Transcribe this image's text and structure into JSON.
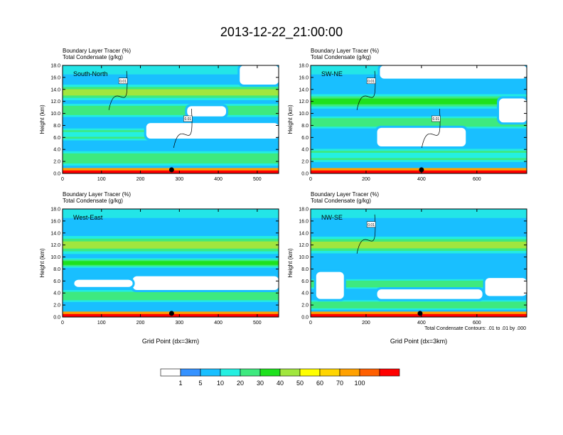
{
  "main_title": "2013-12-22_21:00:00",
  "footnote": "Total Condensate Contours: .01 to .01 by .000",
  "chart_data": [
    {
      "type": "heatmap",
      "panel": "South-North",
      "label": "South-North",
      "line1": "Boundary Layer Tracer   (%)",
      "line2": "Total Condensate   (g/kg)",
      "ylabel": "Height (km)",
      "xlabel": "",
      "xlim": [
        0,
        555
      ],
      "ylim": [
        0,
        18
      ],
      "xticks": [
        0,
        100,
        200,
        300,
        400,
        500
      ],
      "yticks": [
        "0.0",
        "2.0",
        "4.0",
        "6.0",
        "8.0",
        "10.0",
        "12.0",
        "14.0",
        "16.0",
        "18.0"
      ],
      "marker_x": 280,
      "contour_labels": [
        "0.01",
        "0.01"
      ],
      "bands": [
        {
          "center": 13.5,
          "width": 2.6,
          "level": 40
        },
        {
          "center": 10.5,
          "width": 2.2,
          "level": 20
        },
        {
          "center": 6.5,
          "width": 2.0,
          "level": 10
        },
        {
          "center": 2.5,
          "width": 2.4,
          "level": 20
        }
      ],
      "clear_regions": [
        {
          "x0": 215,
          "x1": 555,
          "y0": 5.8,
          "y1": 8.4
        },
        {
          "x0": 455,
          "x1": 555,
          "y0": 14.8,
          "y1": 18.0
        },
        {
          "x0": 320,
          "x1": 420,
          "y0": 9.5,
          "y1": 11.2
        }
      ]
    },
    {
      "type": "heatmap",
      "panel": "SW-NE",
      "label": "SW-NE",
      "line1": "Boundary Layer Tracer   (%)",
      "line2": "Total Condensate   (g/kg)",
      "ylabel": "Height (km)",
      "xlabel": "",
      "xlim": [
        0,
        780
      ],
      "ylim": [
        0,
        18
      ],
      "xticks": [
        0,
        200,
        400,
        600
      ],
      "yticks": [
        "0.0",
        "2.0",
        "4.0",
        "6.0",
        "8.0",
        "10.0",
        "12.0",
        "14.0",
        "16.0",
        "18.0"
      ],
      "marker_x": 400,
      "contour_labels": [
        "0.01",
        "0.01"
      ],
      "bands": [
        {
          "center": 12.0,
          "width": 2.4,
          "level": 30
        },
        {
          "center": 8.5,
          "width": 2.0,
          "level": 20
        },
        {
          "center": 3.0,
          "width": 2.2,
          "level": 10
        }
      ],
      "clear_regions": [
        {
          "x0": 240,
          "x1": 560,
          "y0": 4.5,
          "y1": 7.6
        },
        {
          "x0": 250,
          "x1": 780,
          "y0": 15.8,
          "y1": 18.0
        },
        {
          "x0": 680,
          "x1": 780,
          "y0": 8.5,
          "y1": 12.5
        }
      ]
    },
    {
      "type": "heatmap",
      "panel": "West-East",
      "label": "West-East",
      "line1": "Boundary Layer Tracer   (%)",
      "line2": "Total Condensate   (g/kg)",
      "ylabel": "Height (km)",
      "xlabel": "Grid Point (dx=3km)",
      "xlim": [
        0,
        555
      ],
      "ylim": [
        0,
        18
      ],
      "xticks": [
        0,
        100,
        200,
        300,
        400,
        500
      ],
      "yticks": [
        "0.0",
        "2.0",
        "4.0",
        "6.0",
        "8.0",
        "10.0",
        "12.0",
        "14.0",
        "16.0",
        "18.0"
      ],
      "marker_x": 280,
      "contour_labels": [],
      "bands": [
        {
          "center": 12.0,
          "width": 3.0,
          "level": 40
        },
        {
          "center": 9.0,
          "width": 1.6,
          "level": 30
        },
        {
          "center": 3.5,
          "width": 2.0,
          "level": 20
        }
      ],
      "clear_regions": [
        {
          "x0": 180,
          "x1": 555,
          "y0": 4.5,
          "y1": 6.8
        },
        {
          "x0": 30,
          "x1": 180,
          "y0": 5.0,
          "y1": 6.2
        }
      ]
    },
    {
      "type": "heatmap",
      "panel": "NW-SE",
      "label": "NW-SE",
      "line1": "Boundary Layer Tracer   (%)",
      "line2": "Total Condensate   (g/kg)",
      "ylabel": "Height (km)",
      "xlabel": "Grid Point (dx=3km)",
      "xlim": [
        0,
        780
      ],
      "ylim": [
        0,
        18
      ],
      "xticks": [
        0,
        200,
        400,
        600
      ],
      "yticks": [
        "0.0",
        "2.0",
        "4.0",
        "6.0",
        "8.0",
        "10.0",
        "12.0",
        "14.0",
        "16.0",
        "18.0"
      ],
      "marker_x": 395,
      "contour_labels": [
        "0.01"
      ],
      "bands": [
        {
          "center": 12.0,
          "width": 2.8,
          "level": 40
        },
        {
          "center": 5.5,
          "width": 1.6,
          "level": 20
        },
        {
          "center": 2.0,
          "width": 1.6,
          "level": 20
        }
      ],
      "clear_regions": [
        {
          "x0": 20,
          "x1": 120,
          "y0": 3.0,
          "y1": 7.5
        },
        {
          "x0": 240,
          "x1": 620,
          "y0": 3.0,
          "y1": 4.6
        },
        {
          "x0": 630,
          "x1": 780,
          "y0": 3.5,
          "y1": 6.5
        }
      ]
    }
  ],
  "colorbar": {
    "labels": [
      "1",
      "5",
      "10",
      "20",
      "30",
      "40",
      "50",
      "60",
      "70",
      "100"
    ],
    "colors": [
      "#ffffff",
      "#3592ff",
      "#19bfff",
      "#25efe1",
      "#3ee97f",
      "#1ee11e",
      "#a1e63e",
      "#ffff00",
      "#ffd500",
      "#ffa100",
      "#ff5f00",
      "#ff0000"
    ]
  }
}
